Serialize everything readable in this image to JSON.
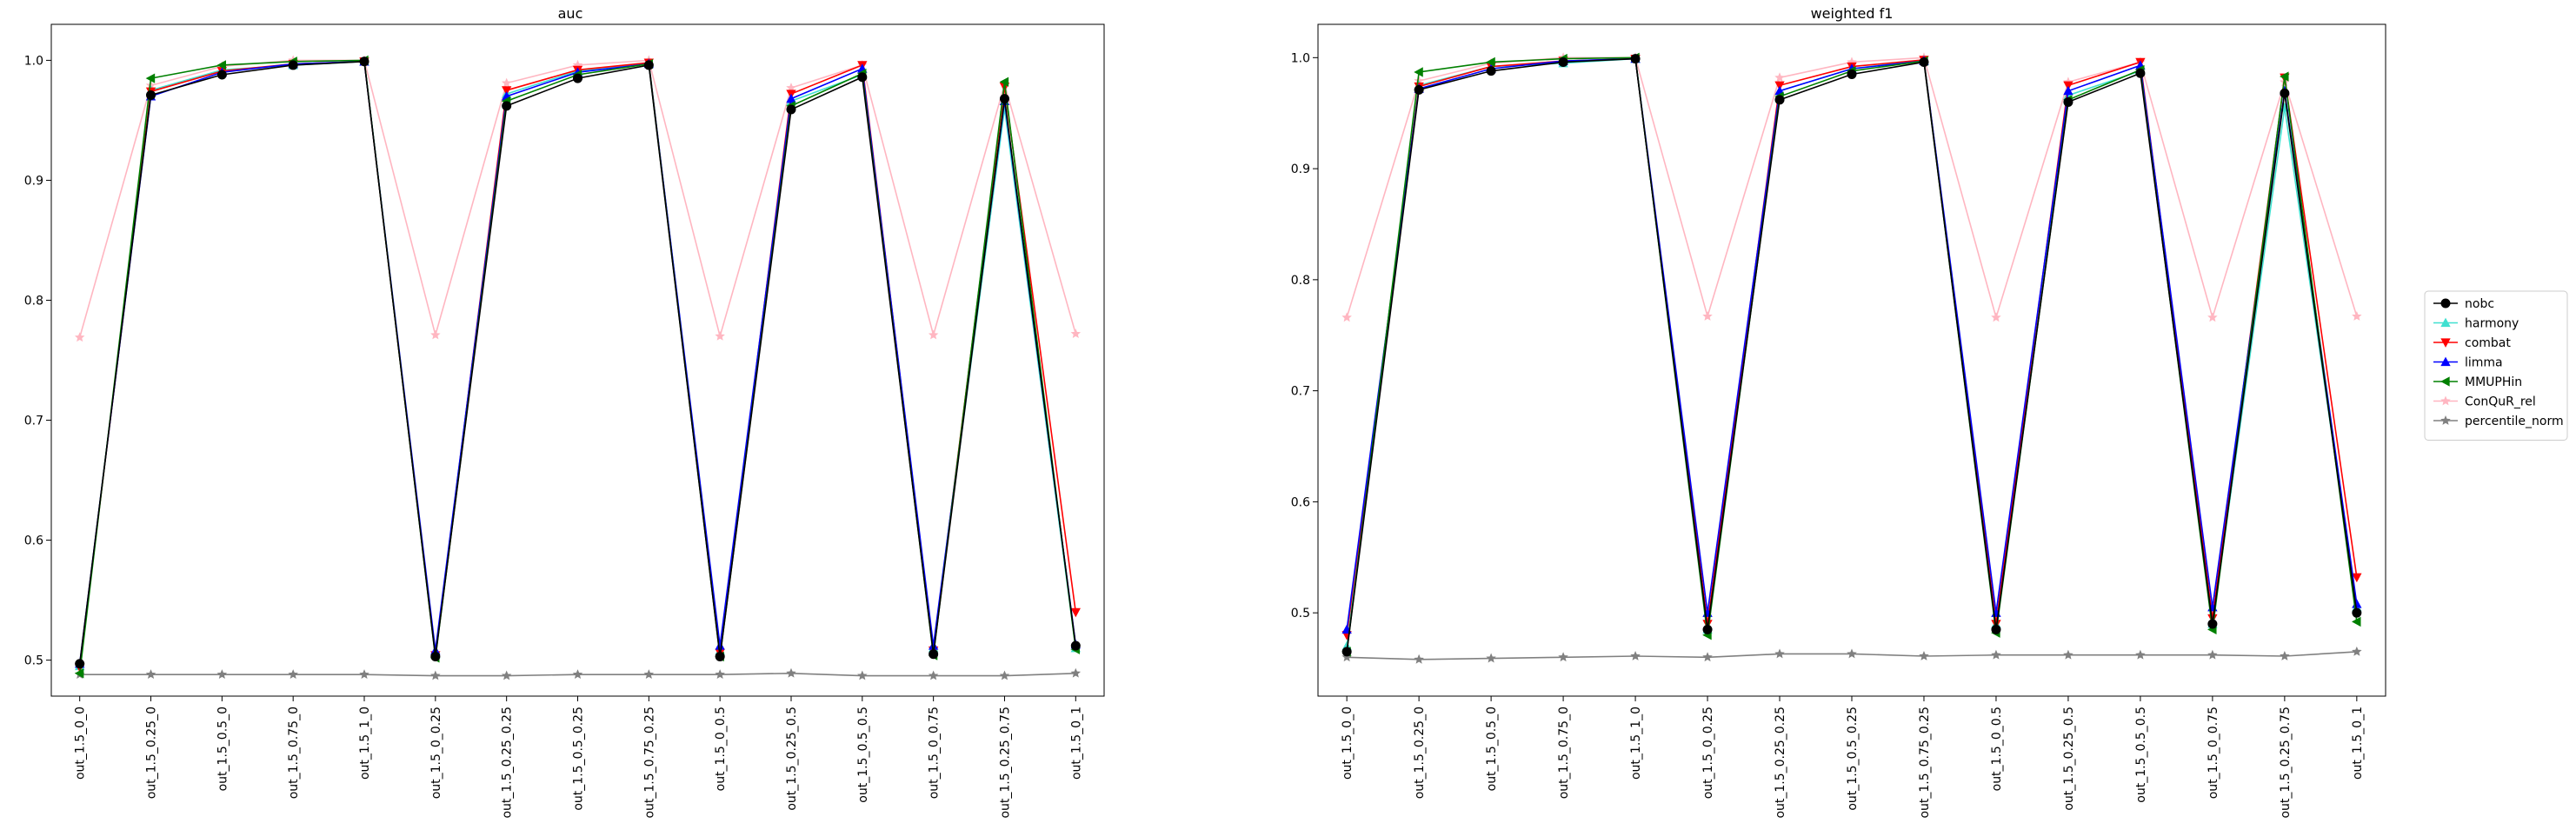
{
  "colors": {
    "nobc": "#000000",
    "harmony": "#40e0d0",
    "combat": "#ff0000",
    "limma": "#0000ff",
    "MMUPHin": "#008000",
    "ConQuR_rel": "#ffb6c1",
    "percentile_norm": "#808080"
  },
  "legend": {
    "placement": "right-center",
    "entries": [
      {
        "name": "nobc",
        "marker": "circle"
      },
      {
        "name": "harmony",
        "marker": "triangle-up"
      },
      {
        "name": "combat",
        "marker": "triangle-down"
      },
      {
        "name": "limma",
        "marker": "triangle-up"
      },
      {
        "name": "MMUPHin",
        "marker": "triangle-left"
      },
      {
        "name": "ConQuR_rel",
        "marker": "star"
      },
      {
        "name": "percentile_norm",
        "marker": "star"
      }
    ]
  },
  "chart_data": [
    {
      "type": "line",
      "title": "auc",
      "xlabel": "",
      "ylabel": "",
      "ylim": [
        0.47,
        1.03
      ],
      "yticks": [
        "0.5",
        "0.6",
        "0.7",
        "0.8",
        "0.9",
        "1.0"
      ],
      "grid": false,
      "categories": [
        "out_1.5_0_0",
        "out_1.5_0.25_0",
        "out_1.5_0.5_0",
        "out_1.5_0.75_0",
        "out_1.5_1_0",
        "out_1.5_0_0.25",
        "out_1.5_0.25_0.25",
        "out_1.5_0.5_0.25",
        "out_1.5_0.75_0.25",
        "out_1.5_0_0.5",
        "out_1.5_0.25_0.5",
        "out_1.5_0.5_0.5",
        "out_1.5_0_0.75",
        "out_1.5_0.25_0.75",
        "out_1.5_0_1"
      ],
      "series": [
        {
          "name": "ConQuR_rel",
          "values": [
            0.769,
            0.979,
            0.995,
            1.0,
            1.0,
            0.771,
            0.981,
            0.996,
            1.0,
            0.77,
            0.977,
            0.996,
            0.771,
            0.98,
            0.772
          ]
        },
        {
          "name": "percentile_norm",
          "values": [
            0.488,
            0.488,
            0.488,
            0.488,
            0.488,
            0.487,
            0.487,
            0.488,
            0.488,
            0.488,
            0.489,
            0.487,
            0.487,
            0.487,
            0.489
          ]
        },
        {
          "name": "harmony",
          "values": [
            0.495,
            0.975,
            0.992,
            0.996,
            0.999,
            0.505,
            0.972,
            0.991,
            0.998,
            0.508,
            0.966,
            0.988,
            0.51,
            0.96,
            0.51
          ]
        },
        {
          "name": "combat",
          "values": [
            0.494,
            0.974,
            0.991,
            0.997,
            0.999,
            0.504,
            0.975,
            0.992,
            0.998,
            0.506,
            0.972,
            0.996,
            0.508,
            0.978,
            0.54
          ]
        },
        {
          "name": "limma",
          "values": [
            0.497,
            0.97,
            0.99,
            0.997,
            0.999,
            0.508,
            0.97,
            0.99,
            0.997,
            0.512,
            0.968,
            0.993,
            0.512,
            0.966,
            0.513
          ]
        },
        {
          "name": "MMUPHin",
          "values": [
            0.489,
            0.985,
            0.996,
            0.999,
            1.0,
            0.502,
            0.966,
            0.988,
            0.997,
            0.503,
            0.962,
            0.989,
            0.504,
            0.982,
            0.509
          ]
        },
        {
          "name": "nobc",
          "values": [
            0.497,
            0.971,
            0.988,
            0.996,
            0.999,
            0.503,
            0.962,
            0.985,
            0.996,
            0.503,
            0.959,
            0.986,
            0.505,
            0.968,
            0.512
          ]
        }
      ]
    },
    {
      "type": "line",
      "title": "weighted f1",
      "xlabel": "",
      "ylabel": "",
      "ylim": [
        0.425,
        1.03
      ],
      "yticks": [
        "0.5",
        "0.6",
        "0.7",
        "0.8",
        "0.9",
        "1.0"
      ],
      "grid": false,
      "categories": [
        "out_1.5_0_0",
        "out_1.5_0.25_0",
        "out_1.5_0.5_0",
        "out_1.5_0.75_0",
        "out_1.5_1_0",
        "out_1.5_0_0.25",
        "out_1.5_0.25_0.25",
        "out_1.5_0.5_0.25",
        "out_1.5_0.75_0.25",
        "out_1.5_0_0.5",
        "out_1.5_0.25_0.5",
        "out_1.5_0.5_0.5",
        "out_1.5_0_0.75",
        "out_1.5_0.25_0.75",
        "out_1.5_0_1"
      ],
      "series": [
        {
          "name": "ConQuR_rel",
          "values": [
            0.766,
            0.979,
            0.995,
            1.0,
            1.0,
            0.767,
            0.982,
            0.996,
            1.0,
            0.766,
            0.978,
            0.996,
            0.766,
            0.978,
            0.767
          ]
        },
        {
          "name": "percentile_norm",
          "values": [
            0.46,
            0.458,
            0.459,
            0.46,
            0.461,
            0.46,
            0.463,
            0.463,
            0.461,
            0.462,
            0.462,
            0.462,
            0.462,
            0.461,
            0.465
          ]
        },
        {
          "name": "harmony",
          "values": [
            0.47,
            0.975,
            0.992,
            0.995,
            0.999,
            0.485,
            0.97,
            0.99,
            0.998,
            0.49,
            0.966,
            0.988,
            0.49,
            0.955,
            0.505
          ]
        },
        {
          "name": "combat",
          "values": [
            0.48,
            0.974,
            0.992,
            0.997,
            0.999,
            0.49,
            0.975,
            0.992,
            0.998,
            0.49,
            0.975,
            0.996,
            0.495,
            0.982,
            0.532
          ]
        },
        {
          "name": "limma",
          "values": [
            0.485,
            0.972,
            0.99,
            0.997,
            0.999,
            0.5,
            0.97,
            0.99,
            0.997,
            0.5,
            0.97,
            0.993,
            0.505,
            0.97,
            0.508
          ]
        },
        {
          "name": "MMUPHin",
          "values": [
            0.465,
            0.987,
            0.996,
            0.999,
            1.0,
            0.48,
            0.965,
            0.988,
            0.997,
            0.482,
            0.962,
            0.989,
            0.485,
            0.983,
            0.492
          ]
        },
        {
          "name": "nobc",
          "values": [
            0.465,
            0.971,
            0.988,
            0.996,
            0.999,
            0.485,
            0.962,
            0.985,
            0.996,
            0.485,
            0.96,
            0.986,
            0.49,
            0.968,
            0.5
          ]
        }
      ]
    }
  ]
}
